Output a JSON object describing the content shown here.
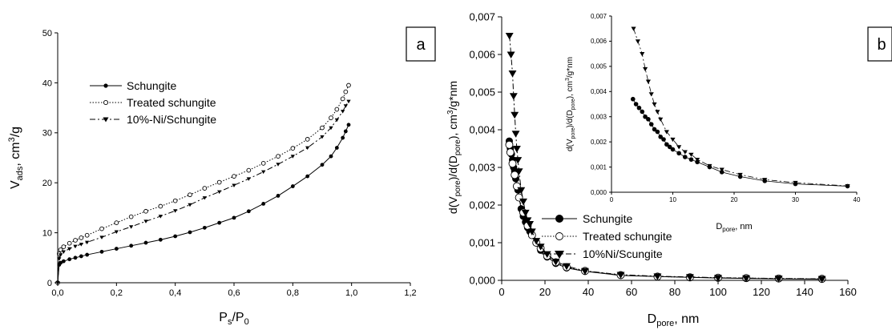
{
  "chart_data": [
    {
      "type": "scatter",
      "panel_label": "a",
      "xlabel_main": "P",
      "xlabel_sub1": "s",
      "xlabel_mid": "/P",
      "xlabel_sub2": "0",
      "ylabel_main": "V",
      "ylabel_sub": "ads",
      "ylabel_unit": ", cm",
      "ylabel_sup": "3",
      "ylabel_tail": "/g",
      "xlim": [
        0,
        1.2
      ],
      "ylim": [
        0,
        50
      ],
      "xticks": [
        "0,0",
        "0,2",
        "0,4",
        "0,6",
        "0,8",
        "1,0",
        "1,2"
      ],
      "yticks": [
        "0",
        "10",
        "20",
        "30",
        "40",
        "50"
      ],
      "legend_position": "upper-left",
      "series": [
        {
          "name": "Schungite",
          "marker": "filled-circle",
          "line": "solid",
          "x": [
            0.0,
            0.005,
            0.01,
            0.02,
            0.04,
            0.06,
            0.08,
            0.1,
            0.15,
            0.2,
            0.25,
            0.3,
            0.35,
            0.4,
            0.45,
            0.5,
            0.55,
            0.6,
            0.65,
            0.7,
            0.75,
            0.8,
            0.85,
            0.9,
            0.93,
            0.95,
            0.97,
            0.98,
            0.99
          ],
          "y": [
            0.0,
            3.6,
            4.0,
            4.3,
            4.7,
            5.0,
            5.3,
            5.6,
            6.2,
            6.8,
            7.4,
            8.0,
            8.6,
            9.3,
            10.1,
            11.0,
            12.0,
            13.0,
            14.3,
            15.8,
            17.4,
            19.3,
            21.3,
            23.6,
            25.3,
            27.0,
            29.0,
            30.3,
            31.6
          ]
        },
        {
          "name": "Treated schungite",
          "marker": "open-circle",
          "line": "dotted",
          "x": [
            0.0,
            0.005,
            0.01,
            0.02,
            0.04,
            0.06,
            0.08,
            0.1,
            0.15,
            0.2,
            0.25,
            0.3,
            0.35,
            0.4,
            0.45,
            0.5,
            0.55,
            0.6,
            0.65,
            0.7,
            0.75,
            0.8,
            0.85,
            0.9,
            0.93,
            0.95,
            0.97,
            0.98,
            0.99
          ],
          "y": [
            0.0,
            5.8,
            6.6,
            7.2,
            7.9,
            8.5,
            9.0,
            9.5,
            10.8,
            12.0,
            13.2,
            14.3,
            15.3,
            16.4,
            17.6,
            18.9,
            20.1,
            21.3,
            22.5,
            23.9,
            25.3,
            26.9,
            28.7,
            31.0,
            33.0,
            34.7,
            36.8,
            38.2,
            39.5
          ]
        },
        {
          "name": "10%-Ni/Schungite",
          "marker": "filled-triangle-down",
          "line": "dash-dot",
          "x": [
            0.0,
            0.005,
            0.01,
            0.02,
            0.04,
            0.06,
            0.08,
            0.1,
            0.15,
            0.2,
            0.25,
            0.3,
            0.35,
            0.4,
            0.45,
            0.5,
            0.55,
            0.6,
            0.65,
            0.7,
            0.75,
            0.8,
            0.85,
            0.9,
            0.93,
            0.95,
            0.97,
            0.98,
            0.99
          ],
          "y": [
            0.0,
            4.8,
            5.6,
            6.2,
            6.8,
            7.3,
            7.7,
            8.1,
            9.1,
            10.2,
            11.2,
            12.3,
            13.3,
            14.4,
            15.6,
            17.0,
            18.2,
            19.5,
            20.8,
            22.2,
            23.7,
            25.3,
            27.0,
            29.2,
            31.0,
            32.6,
            34.3,
            35.4,
            36.3
          ]
        }
      ]
    },
    {
      "type": "scatter",
      "panel_label": "b",
      "xlabel_main": "D",
      "xlabel_sub": "pore",
      "xlabel_tail": ", nm",
      "ylabel_text": "d(V",
      "ylabel_sub1": "pore",
      "ylabel_mid": ")/d(D",
      "ylabel_sub2": "pore",
      "ylabel_unit": "), cm",
      "ylabel_sup": "3",
      "ylabel_tail": "/g*nm",
      "xlim": [
        0,
        160
      ],
      "ylim": [
        0,
        0.007
      ],
      "xticks": [
        "0",
        "20",
        "40",
        "60",
        "80",
        "100",
        "120",
        "140",
        "160"
      ],
      "yticks": [
        "0,000",
        "0,001",
        "0,002",
        "0,003",
        "0,004",
        "0,005",
        "0,006",
        "0,007"
      ],
      "legend_position": "center-right",
      "series": [
        {
          "name": "Schungite",
          "marker": "filled-circle",
          "line": "solid",
          "x": [
            3.5,
            4,
            4.5,
            5,
            5.5,
            6,
            6.5,
            7,
            7.5,
            8,
            9,
            10,
            11,
            12,
            13,
            14,
            16,
            18,
            21,
            25,
            30,
            38.5,
            55,
            72,
            87,
            100,
            113,
            128,
            148
          ],
          "y": [
            0.0037,
            0.0035,
            0.00335,
            0.0032,
            0.003,
            0.0029,
            0.0027,
            0.0025,
            0.0024,
            0.0022,
            0.0019,
            0.0017,
            0.00155,
            0.0014,
            0.0013,
            0.0012,
            0.001,
            0.0008,
            0.00062,
            0.00045,
            0.00033,
            0.00024,
            0.00013,
            0.0001,
            8e-05,
            6e-05,
            5e-05,
            4e-05,
            3e-05
          ]
        },
        {
          "name": "Treated schungite",
          "marker": "open-circle",
          "line": "dotted",
          "x": [
            3.5,
            4,
            5,
            6,
            7,
            8,
            10,
            12,
            14,
            16,
            18,
            21,
            25,
            30,
            38.5,
            55,
            72,
            87,
            100,
            113,
            128,
            148
          ],
          "y": [
            0.0036,
            0.0034,
            0.0031,
            0.0028,
            0.0025,
            0.0022,
            0.0018,
            0.00145,
            0.0012,
            0.001,
            0.00085,
            0.00065,
            0.00048,
            0.00035,
            0.00025,
            0.00014,
            0.0001,
            8e-05,
            7e-05,
            6e-05,
            5e-05,
            4e-05
          ]
        },
        {
          "name": "10%Ni/Scungite",
          "marker": "filled-triangle-down",
          "line": "dash-dot",
          "x": [
            3.6,
            4.3,
            5,
            5.5,
            6,
            6.5,
            7,
            7.5,
            8,
            9,
            10,
            11,
            12,
            13,
            14,
            16,
            18,
            21,
            25,
            30,
            38.5,
            55,
            72,
            87,
            100,
            113,
            128,
            148
          ],
          "y": [
            0.0065,
            0.006,
            0.0055,
            0.0049,
            0.0044,
            0.0039,
            0.0035,
            0.0032,
            0.0029,
            0.0024,
            0.0021,
            0.0018,
            0.0016,
            0.0015,
            0.0013,
            0.00105,
            0.0009,
            0.0007,
            0.0005,
            0.00038,
            0.00025,
            0.00015,
            0.00011,
            9e-05,
            7e-05,
            6e-05,
            5e-05,
            4e-05
          ]
        }
      ],
      "inset": {
        "xlabel_main": "D",
        "xlabel_sub": "pore",
        "xlabel_tail": ", nm",
        "ylabel_text": "d(V",
        "ylabel_sub1": "pore",
        "ylabel_mid": ")/d(D",
        "ylabel_sub2": "pore",
        "ylabel_unit": "), cm",
        "ylabel_sup": "3",
        "ylabel_tail": "/g*nm",
        "xlim": [
          0,
          40
        ],
        "ylim": [
          0,
          0.007
        ],
        "xticks": [
          "0",
          "10",
          "20",
          "30",
          "40"
        ],
        "yticks": [
          "0,000",
          "0,001",
          "0,002",
          "0,003",
          "0,004",
          "0,005",
          "0,006",
          "0,007"
        ],
        "series": [
          {
            "name": "Schungite",
            "marker": "filled-circle",
            "line": "solid",
            "x": [
              3.5,
              4,
              4.5,
              5,
              5.5,
              6,
              6.5,
              7,
              7.5,
              8,
              8.5,
              9,
              9.5,
              10,
              11,
              12,
              13,
              14,
              16,
              18,
              21,
              25,
              30,
              38.5
            ],
            "y": [
              0.0037,
              0.0035,
              0.00335,
              0.0032,
              0.003,
              0.0029,
              0.0027,
              0.0025,
              0.0024,
              0.0022,
              0.0021,
              0.0019,
              0.0018,
              0.0017,
              0.00155,
              0.0014,
              0.0013,
              0.0012,
              0.001,
              0.0008,
              0.00062,
              0.00045,
              0.00033,
              0.00024
            ]
          },
          {
            "name": "10%Ni/Scungite",
            "marker": "filled-triangle-down",
            "line": "dash-dot",
            "x": [
              3.6,
              4.3,
              5,
              5.5,
              6,
              6.5,
              7,
              7.5,
              8,
              9,
              10,
              11,
              12,
              13,
              14,
              16,
              18,
              21,
              25,
              30,
              38.5
            ],
            "y": [
              0.0065,
              0.006,
              0.0055,
              0.0049,
              0.0044,
              0.0039,
              0.0035,
              0.0032,
              0.0029,
              0.0024,
              0.0021,
              0.0018,
              0.0016,
              0.0015,
              0.0013,
              0.00105,
              0.0009,
              0.0007,
              0.0005,
              0.00038,
              0.00025
            ]
          }
        ]
      }
    }
  ]
}
